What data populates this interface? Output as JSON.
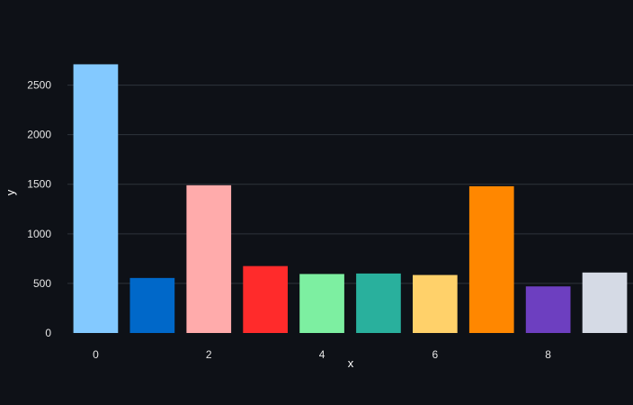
{
  "chart_data": {
    "type": "bar",
    "x": [
      0,
      1,
      2,
      3,
      4,
      5,
      6,
      7,
      8,
      9
    ],
    "values": [
      2710,
      555,
      1490,
      675,
      595,
      600,
      585,
      1480,
      470,
      610
    ],
    "colors": [
      "#83c9ff",
      "#0068c9",
      "#ffabab",
      "#ff2b2b",
      "#7defa1",
      "#29b09d",
      "#ffd16a",
      "#ff8700",
      "#6d3fc0",
      "#d5dae5"
    ],
    "xlabel": "x",
    "ylabel": "y",
    "xticks": [
      0,
      2,
      4,
      6,
      8
    ],
    "yticks": [
      0,
      500,
      1000,
      1500,
      2000,
      2500
    ],
    "ylim": [
      0,
      2950
    ],
    "grid": true,
    "background": "#0e1117"
  }
}
